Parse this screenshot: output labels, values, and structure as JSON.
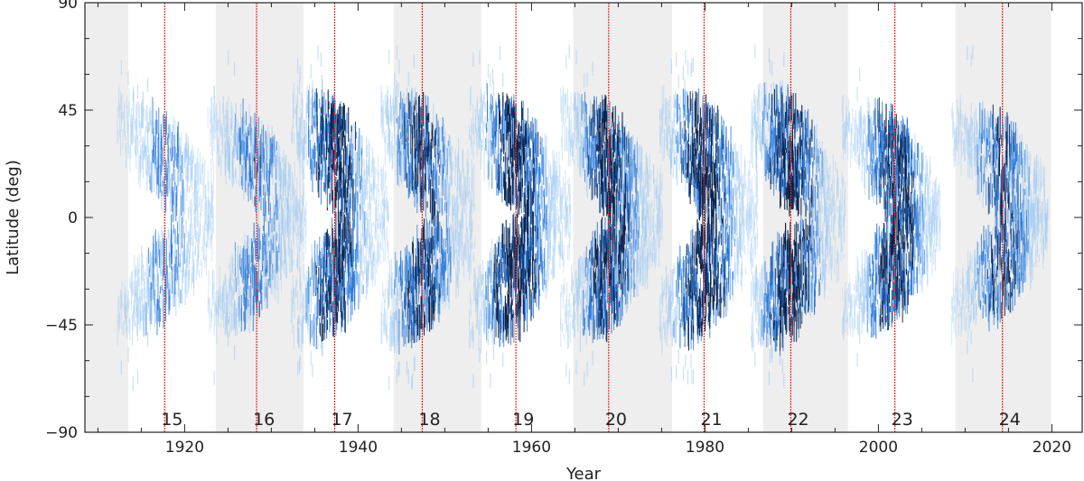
{
  "chart_data": {
    "type": "heatmap",
    "title": "",
    "xlabel": "Year",
    "ylabel": "Latitude (deg)",
    "xlim": [
      1908.5,
      2023.5
    ],
    "ylim": [
      -90,
      90
    ],
    "x_ticks": [
      1920,
      1940,
      1960,
      1980,
      2000,
      2020
    ],
    "y_ticks": [
      -90,
      -45,
      0,
      45,
      90
    ],
    "x_tick_labels": [
      "1920",
      "1940",
      "1960",
      "1980",
      "2000",
      "2020"
    ],
    "y_tick_labels": [
      "−90",
      "−45",
      "0",
      "45",
      "90"
    ],
    "grid": false,
    "cycles": [
      {
        "label": "15",
        "start": 1913.5,
        "max": 1917.7
      },
      {
        "label": "16",
        "start": 1923.6,
        "max": 1928.3
      },
      {
        "label": "17",
        "start": 1933.7,
        "max": 1937.3
      },
      {
        "label": "18",
        "start": 1944.1,
        "max": 1947.4
      },
      {
        "label": "19",
        "start": 1954.2,
        "max": 1958.2
      },
      {
        "label": "20",
        "start": 1964.8,
        "max": 1968.9
      },
      {
        "label": "21",
        "start": 1976.2,
        "max": 1979.9
      },
      {
        "label": "22",
        "start": 1986.7,
        "max": 1989.9
      },
      {
        "label": "23",
        "start": 1996.5,
        "max": 2001.9
      },
      {
        "label": "24",
        "start": 2008.9,
        "max": 2014.3
      }
    ],
    "shaded_cycle_bands": [
      [
        1908.5,
        1913.5
      ],
      [
        1923.6,
        1933.7
      ],
      [
        1944.1,
        1954.2
      ],
      [
        1964.8,
        1976.2
      ],
      [
        1986.7,
        1996.5
      ],
      [
        2008.9,
        2019.9
      ]
    ],
    "colors": {
      "band": "#eeeeee",
      "cycle_max_line": "#e8291c",
      "heat_low": "#9ec9f2",
      "heat_mid": "#1d6fd6",
      "heat_high": "#0a1f45"
    }
  }
}
